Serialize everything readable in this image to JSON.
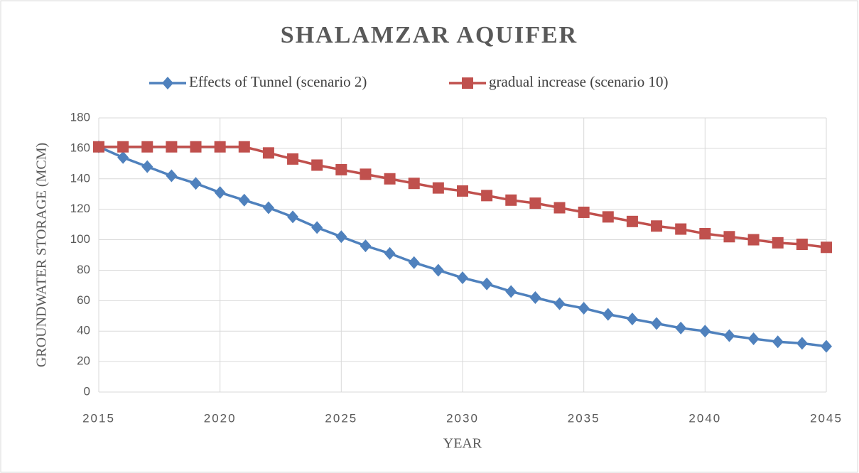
{
  "chart_data": {
    "type": "line",
    "title": "SHALAMZAR AQUIFER",
    "x_label": "YEAR",
    "y_label": "GROUNDWATER  STORAGE (MCM)",
    "x": [
      2015,
      2016,
      2017,
      2018,
      2019,
      2020,
      2021,
      2022,
      2023,
      2024,
      2025,
      2026,
      2027,
      2028,
      2029,
      2030,
      2031,
      2032,
      2033,
      2034,
      2035,
      2036,
      2037,
      2038,
      2039,
      2040,
      2041,
      2042,
      2043,
      2044,
      2045
    ],
    "series": [
      {
        "name": "Effects of Tunnel (scenario 2)",
        "color": "#4f81bd",
        "marker": "diamond",
        "values": [
          161,
          154,
          148,
          142,
          137,
          131,
          126,
          121,
          115,
          108,
          102,
          96,
          91,
          85,
          80,
          75,
          71,
          66,
          62,
          58,
          55,
          51,
          48,
          45,
          42,
          40,
          37,
          35,
          33,
          32,
          30
        ]
      },
      {
        "name": "gradual increase (scenario 10)",
        "color": "#c0504d",
        "marker": "square",
        "values": [
          161,
          161,
          161,
          161,
          161,
          161,
          161,
          157,
          153,
          149,
          146,
          143,
          140,
          137,
          134,
          132,
          129,
          126,
          124,
          121,
          118,
          115,
          112,
          109,
          107,
          104,
          102,
          100,
          98,
          97,
          95
        ]
      }
    ],
    "xlim": [
      2015,
      2045
    ],
    "xticks": [
      2015,
      2020,
      2025,
      2030,
      2035,
      2040,
      2045
    ],
    "ylim": [
      0,
      180
    ],
    "yticks": [
      0,
      20,
      40,
      60,
      80,
      100,
      120,
      140,
      160,
      180
    ],
    "grid": true,
    "legend": "top"
  }
}
